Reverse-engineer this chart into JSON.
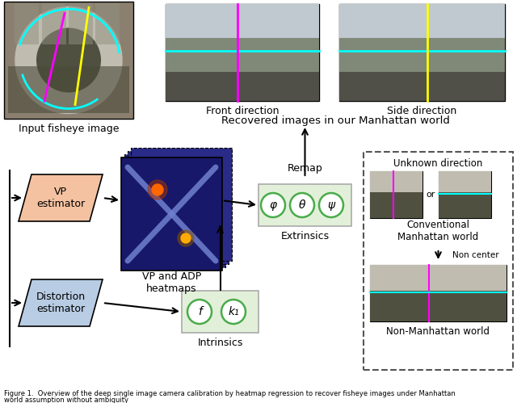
{
  "top_labels": {
    "fisheye": "Input fisheye image",
    "front": "Front direction",
    "side": "Side direction",
    "recovered": "Recovered images in our Manhattan world"
  },
  "flow_labels": {
    "vp_estimator": "VP\nestimator",
    "distortion_estimator": "Distortion\nestimator",
    "heatmaps": "VP and ADP\nheatmaps",
    "extrinsics": "Extrinsics",
    "intrinsics": "Intrinsics",
    "remap": "Remap"
  },
  "right_labels": {
    "unknown_direction": "Unknown direction",
    "conventional": "Conventional\nManhattan world",
    "non_center": "Non center",
    "non_manhattan": "Non-Manhattan world"
  },
  "greek": {
    "phi": "φ",
    "theta": "θ",
    "psi": "ψ",
    "f": "f",
    "k1": "k₁"
  },
  "colors": {
    "vp_box": "#F4C2A1",
    "dist_box": "#B8CCE4",
    "param_box_bg": "#E2F0D9",
    "param_box_border": "#AAAAAA",
    "circle_green": "#4aab4a",
    "heatmap_dark": "#1e1e6e",
    "heatmap_x_color": "#7080d0",
    "arrow": "#000000",
    "dashed_border": "#555555",
    "bg": "#ffffff"
  },
  "caption": "Figure 1.  Overview of the deep single image camera calibration by heatmap regression to recover fisheye images under Manhattan world assumption without ambiguity"
}
